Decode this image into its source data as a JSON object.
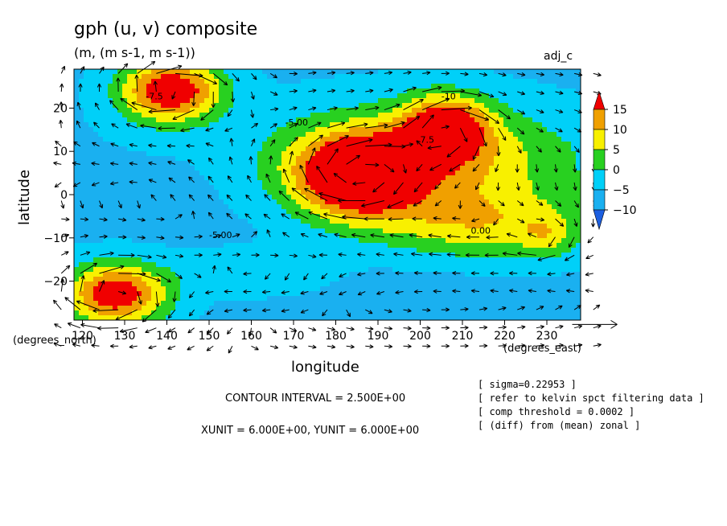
{
  "chart_data": {
    "type": "heatmap",
    "title": "gph (u, v) composite",
    "subtitle": "(m, (m s-1, m s-1))",
    "tag": "adj_c",
    "xlabel": "longitude",
    "ylabel": "latitude",
    "x_unit_label": "(degrees_east)",
    "y_unit_label": "(degrees_north)",
    "xlim": [
      118,
      238
    ],
    "ylim": [
      -29,
      29
    ],
    "x_ticks": [
      120,
      130,
      140,
      150,
      160,
      170,
      180,
      190,
      200,
      210,
      220,
      230
    ],
    "x_tick_labels": [
      "120",
      "130",
      "140",
      "150",
      "160",
      "170",
      "180",
      "190",
      "200",
      "210",
      "220",
      "230"
    ],
    "y_ticks": [
      20,
      10,
      0,
      -10,
      -20
    ],
    "y_tick_labels": [
      "20",
      "10",
      "0",
      "−10",
      "−20"
    ],
    "colorbar": {
      "levels": [
        -12.5,
        -10,
        -5,
        0,
        5,
        10,
        15
      ],
      "labels": [
        "15",
        "10",
        "5",
        "0",
        "−5",
        "−10"
      ],
      "label_values": [
        15,
        10,
        5,
        0,
        -5,
        -10
      ],
      "colors": [
        "#1c5fe0",
        "#1ab0f0",
        "#00d0f8",
        "#28d020",
        "#f8f000",
        "#f0a000",
        "#f00000"
      ]
    },
    "field_centers": [
      {
        "lon": 141,
        "lat": 24,
        "value": 16,
        "rx": 12,
        "ry": 7
      },
      {
        "lon": 185,
        "lat": 4,
        "value": 16,
        "rx": 14,
        "ry": 9
      },
      {
        "lon": 206,
        "lat": 16,
        "value": 11,
        "rx": 10,
        "ry": 7
      },
      {
        "lon": 128,
        "lat": -23,
        "value": 15,
        "rx": 12,
        "ry": 7
      },
      {
        "lon": 200,
        "lat": 8,
        "value": 7,
        "rx": 35,
        "ry": 12
      },
      {
        "lon": 215,
        "lat": -7,
        "value": 2,
        "rx": 25,
        "ry": 8
      },
      {
        "lon": 150,
        "lat": 3,
        "value": -12,
        "rx": 22,
        "ry": 11
      },
      {
        "lon": 205,
        "lat": -22,
        "value": -12,
        "rx": 30,
        "ry": 8
      },
      {
        "lon": 210,
        "lat": 26,
        "value": -11,
        "rx": 25,
        "ry": 5
      },
      {
        "lon": 135,
        "lat": 14,
        "value": -10,
        "rx": 16,
        "ry": 6
      },
      {
        "lon": 160,
        "lat": -18,
        "value": -6,
        "rx": 18,
        "ry": 5
      },
      {
        "lon": 230,
        "lat": -10,
        "value": -4,
        "rx": 6,
        "ry": 5
      }
    ],
    "contour_labels": [
      {
        "lon": 135,
        "lat": 22,
        "text": "-7.5"
      },
      {
        "lon": 168,
        "lat": 16,
        "text": "-5.00"
      },
      {
        "lon": 200,
        "lat": 12,
        "text": "7.5"
      },
      {
        "lon": 205,
        "lat": 22,
        "text": "-10"
      },
      {
        "lon": 212,
        "lat": -9,
        "text": "0.00"
      },
      {
        "lon": 150,
        "lat": -10,
        "text": "-5.00"
      }
    ],
    "vector_reference": {
      "lon": 236,
      "lat": -30,
      "arrow": "reference vector"
    },
    "grid": false,
    "legend": "colorbar right"
  },
  "annotations": {
    "contour_interval": "CONTOUR INTERVAL = 2.500E+00",
    "units": "XUNIT = 6.000E+00, YUNIT = 6.000E+00",
    "info_lines": [
      "[ sigma=0.22953 ]",
      "[ refer to kelvin spct filtering data ]",
      "[ comp threshold = 0.0002 ]",
      "[ (diff) from (mean) zonal ]"
    ]
  }
}
